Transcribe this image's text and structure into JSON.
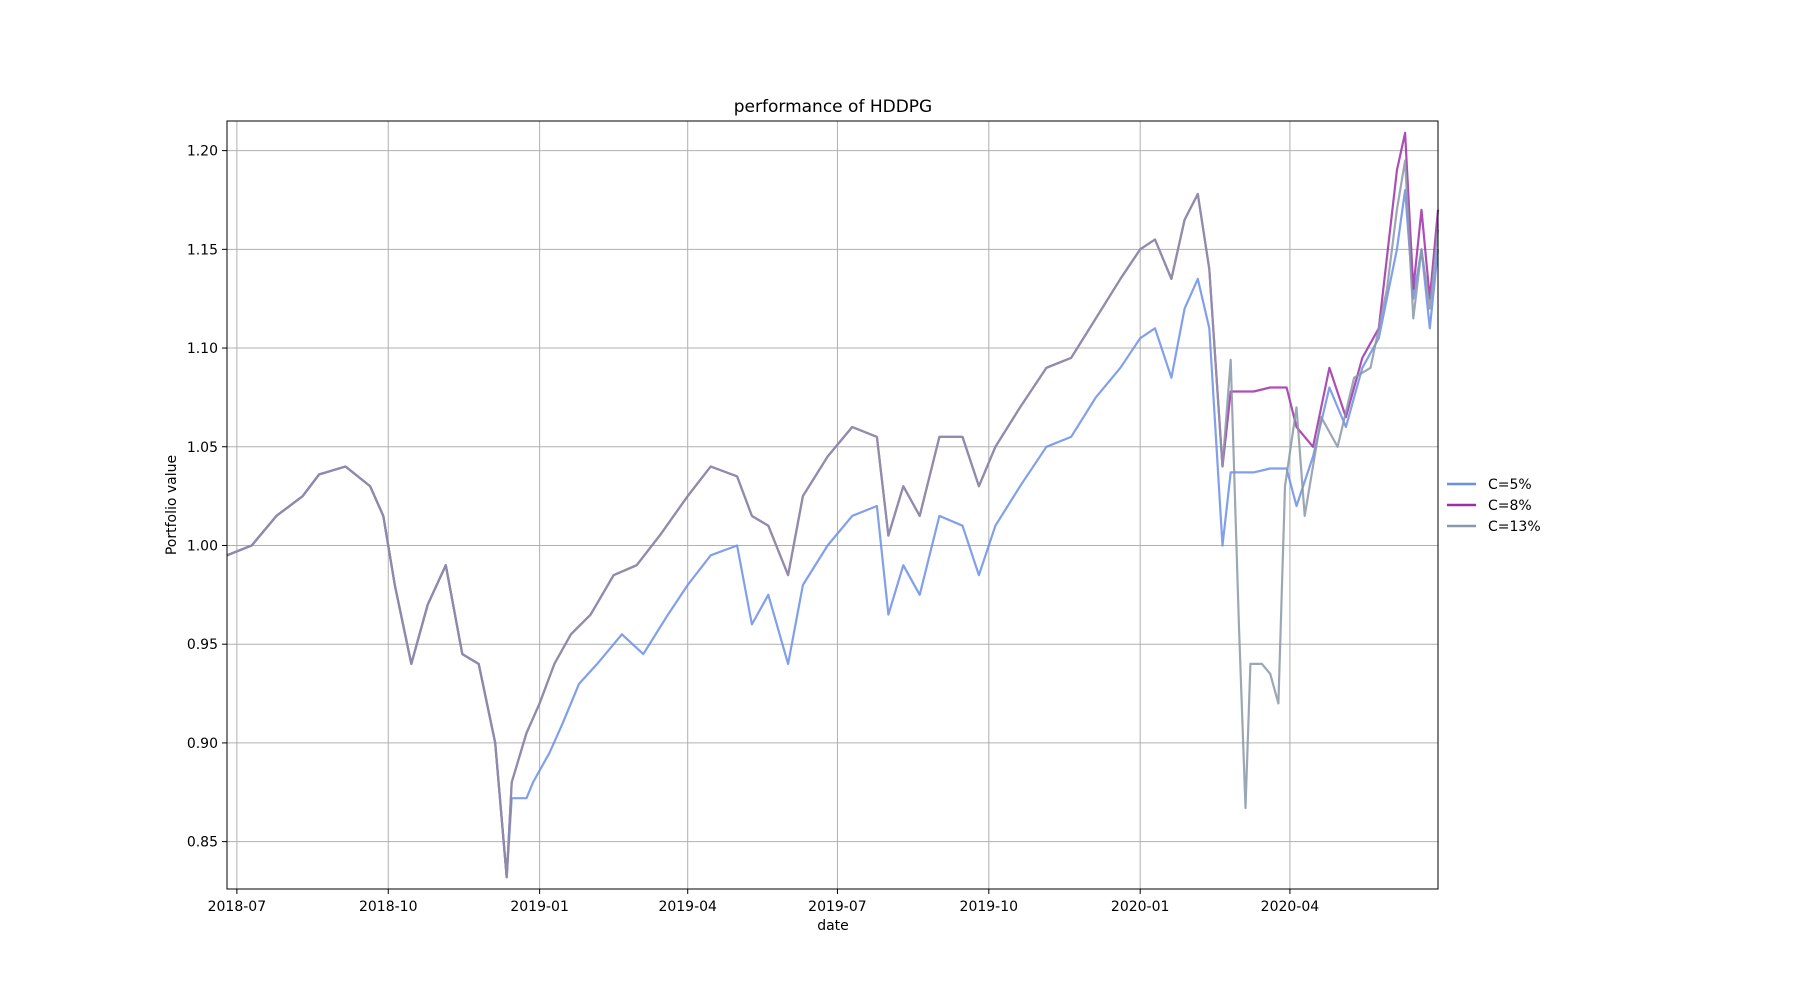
{
  "chart_data": {
    "type": "line",
    "title": "performance of HDDPG",
    "xlabel": "date",
    "ylabel": "Portfolio value",
    "x_ticks": [
      "2018-07",
      "2018-10",
      "2019-01",
      "2019-04",
      "2019-07",
      "2019-10",
      "2020-01",
      "2020-04"
    ],
    "y_ticks": [
      "0.85",
      "0.90",
      "0.95",
      "1.00",
      "1.05",
      "1.10",
      "1.15",
      "1.20"
    ],
    "xlim": [
      "2018-06-25",
      "2020-06-30"
    ],
    "ylim": [
      0.826,
      1.215
    ],
    "grid": true,
    "legend_position": "right, outside plot",
    "series": [
      {
        "name": "C=5%",
        "color": "#6b8ee8",
        "points": [
          [
            "2018-06-25",
            0.995
          ],
          [
            "2018-07-10",
            1.0
          ],
          [
            "2018-07-25",
            1.015
          ],
          [
            "2018-08-10",
            1.025
          ],
          [
            "2018-08-20",
            1.036
          ],
          [
            "2018-09-05",
            1.04
          ],
          [
            "2018-09-20",
            1.03
          ],
          [
            "2018-09-28",
            1.015
          ],
          [
            "2018-10-05",
            0.98
          ],
          [
            "2018-10-15",
            0.94
          ],
          [
            "2018-10-25",
            0.97
          ],
          [
            "2018-11-05",
            0.99
          ],
          [
            "2018-11-15",
            0.945
          ],
          [
            "2018-11-25",
            0.94
          ],
          [
            "2018-12-05",
            0.9
          ],
          [
            "2018-12-12",
            0.832
          ],
          [
            "2018-12-15",
            0.872
          ],
          [
            "2018-12-24",
            0.872
          ],
          [
            "2018-12-28",
            0.88
          ],
          [
            "2019-01-07",
            0.895
          ],
          [
            "2019-01-15",
            0.91
          ],
          [
            "2019-01-25",
            0.93
          ],
          [
            "2019-02-05",
            0.94
          ],
          [
            "2019-02-20",
            0.955
          ],
          [
            "2019-03-05",
            0.945
          ],
          [
            "2019-03-20",
            0.965
          ],
          [
            "2019-04-01",
            0.98
          ],
          [
            "2019-04-15",
            0.995
          ],
          [
            "2019-05-01",
            1.0
          ],
          [
            "2019-05-10",
            0.96
          ],
          [
            "2019-05-20",
            0.975
          ],
          [
            "2019-06-01",
            0.94
          ],
          [
            "2019-06-10",
            0.98
          ],
          [
            "2019-06-25",
            1.0
          ],
          [
            "2019-07-10",
            1.015
          ],
          [
            "2019-07-25",
            1.02
          ],
          [
            "2019-08-01",
            0.965
          ],
          [
            "2019-08-10",
            0.99
          ],
          [
            "2019-08-20",
            0.975
          ],
          [
            "2019-09-01",
            1.015
          ],
          [
            "2019-09-15",
            1.01
          ],
          [
            "2019-09-25",
            0.985
          ],
          [
            "2019-10-05",
            1.01
          ],
          [
            "2019-10-20",
            1.03
          ],
          [
            "2019-11-05",
            1.05
          ],
          [
            "2019-11-20",
            1.055
          ],
          [
            "2019-12-05",
            1.075
          ],
          [
            "2019-12-20",
            1.09
          ],
          [
            "2020-01-01",
            1.105
          ],
          [
            "2020-01-10",
            1.11
          ],
          [
            "2020-01-20",
            1.085
          ],
          [
            "2020-01-28",
            1.12
          ],
          [
            "2020-02-05",
            1.135
          ],
          [
            "2020-02-12",
            1.11
          ],
          [
            "2020-02-20",
            1.0
          ],
          [
            "2020-02-25",
            1.037
          ],
          [
            "2020-03-10",
            1.037
          ],
          [
            "2020-03-20",
            1.039
          ],
          [
            "2020-03-30",
            1.039
          ],
          [
            "2020-04-05",
            1.02
          ],
          [
            "2020-04-15",
            1.045
          ],
          [
            "2020-04-25",
            1.08
          ],
          [
            "2020-05-05",
            1.06
          ],
          [
            "2020-05-15",
            1.09
          ],
          [
            "2020-05-25",
            1.105
          ],
          [
            "2020-06-05",
            1.15
          ],
          [
            "2020-06-10",
            1.18
          ],
          [
            "2020-06-15",
            1.125
          ],
          [
            "2020-06-20",
            1.15
          ],
          [
            "2020-06-25",
            1.11
          ],
          [
            "2020-06-30",
            1.15
          ]
        ]
      },
      {
        "name": "C=8%",
        "color": "#9c2fa8",
        "points": [
          [
            "2018-06-25",
            0.995
          ],
          [
            "2018-07-10",
            1.0
          ],
          [
            "2018-07-25",
            1.015
          ],
          [
            "2018-08-10",
            1.025
          ],
          [
            "2018-08-20",
            1.036
          ],
          [
            "2018-09-05",
            1.04
          ],
          [
            "2018-09-20",
            1.03
          ],
          [
            "2018-09-28",
            1.015
          ],
          [
            "2018-10-05",
            0.98
          ],
          [
            "2018-10-15",
            0.94
          ],
          [
            "2018-10-25",
            0.97
          ],
          [
            "2018-11-05",
            0.99
          ],
          [
            "2018-11-15",
            0.945
          ],
          [
            "2018-11-25",
            0.94
          ],
          [
            "2018-12-05",
            0.9
          ],
          [
            "2018-12-12",
            0.832
          ],
          [
            "2018-12-15",
            0.88
          ],
          [
            "2018-12-24",
            0.905
          ],
          [
            "2019-01-01",
            0.92
          ],
          [
            "2019-01-10",
            0.94
          ],
          [
            "2019-01-20",
            0.955
          ],
          [
            "2019-02-01",
            0.965
          ],
          [
            "2019-02-15",
            0.985
          ],
          [
            "2019-03-01",
            0.99
          ],
          [
            "2019-03-15",
            1.005
          ],
          [
            "2019-04-01",
            1.025
          ],
          [
            "2019-04-15",
            1.04
          ],
          [
            "2019-05-01",
            1.035
          ],
          [
            "2019-05-10",
            1.015
          ],
          [
            "2019-05-20",
            1.01
          ],
          [
            "2019-06-01",
            0.985
          ],
          [
            "2019-06-10",
            1.025
          ],
          [
            "2019-06-25",
            1.045
          ],
          [
            "2019-07-10",
            1.06
          ],
          [
            "2019-07-25",
            1.055
          ],
          [
            "2019-08-01",
            1.005
          ],
          [
            "2019-08-10",
            1.03
          ],
          [
            "2019-08-20",
            1.015
          ],
          [
            "2019-09-01",
            1.055
          ],
          [
            "2019-09-15",
            1.055
          ],
          [
            "2019-09-25",
            1.03
          ],
          [
            "2019-10-05",
            1.05
          ],
          [
            "2019-10-20",
            1.07
          ],
          [
            "2019-11-05",
            1.09
          ],
          [
            "2019-11-20",
            1.095
          ],
          [
            "2019-12-05",
            1.115
          ],
          [
            "2019-12-20",
            1.135
          ],
          [
            "2020-01-01",
            1.15
          ],
          [
            "2020-01-10",
            1.155
          ],
          [
            "2020-01-20",
            1.135
          ],
          [
            "2020-01-28",
            1.165
          ],
          [
            "2020-02-05",
            1.178
          ],
          [
            "2020-02-12",
            1.14
          ],
          [
            "2020-02-20",
            1.04
          ],
          [
            "2020-02-25",
            1.078
          ],
          [
            "2020-03-10",
            1.078
          ],
          [
            "2020-03-20",
            1.08
          ],
          [
            "2020-03-30",
            1.08
          ],
          [
            "2020-04-05",
            1.06
          ],
          [
            "2020-04-15",
            1.05
          ],
          [
            "2020-04-25",
            1.09
          ],
          [
            "2020-05-05",
            1.065
          ],
          [
            "2020-05-15",
            1.095
          ],
          [
            "2020-05-25",
            1.11
          ],
          [
            "2020-06-05",
            1.19
          ],
          [
            "2020-06-10",
            1.209
          ],
          [
            "2020-06-15",
            1.13
          ],
          [
            "2020-06-20",
            1.17
          ],
          [
            "2020-06-25",
            1.125
          ],
          [
            "2020-06-30",
            1.17
          ]
        ]
      },
      {
        "name": "C=13%",
        "color": "#8b98a8",
        "points": [
          [
            "2018-06-25",
            0.995
          ],
          [
            "2018-07-10",
            1.0
          ],
          [
            "2018-07-25",
            1.015
          ],
          [
            "2018-08-10",
            1.025
          ],
          [
            "2018-08-20",
            1.036
          ],
          [
            "2018-09-05",
            1.04
          ],
          [
            "2018-09-20",
            1.03
          ],
          [
            "2018-09-28",
            1.015
          ],
          [
            "2018-10-05",
            0.98
          ],
          [
            "2018-10-15",
            0.94
          ],
          [
            "2018-10-25",
            0.97
          ],
          [
            "2018-11-05",
            0.99
          ],
          [
            "2018-11-15",
            0.945
          ],
          [
            "2018-11-25",
            0.94
          ],
          [
            "2018-12-05",
            0.9
          ],
          [
            "2018-12-12",
            0.832
          ],
          [
            "2018-12-15",
            0.88
          ],
          [
            "2018-12-24",
            0.905
          ],
          [
            "2019-01-01",
            0.92
          ],
          [
            "2019-01-10",
            0.94
          ],
          [
            "2019-01-20",
            0.955
          ],
          [
            "2019-02-01",
            0.965
          ],
          [
            "2019-02-15",
            0.985
          ],
          [
            "2019-03-01",
            0.99
          ],
          [
            "2019-03-15",
            1.005
          ],
          [
            "2019-04-01",
            1.025
          ],
          [
            "2019-04-15",
            1.04
          ],
          [
            "2019-05-01",
            1.035
          ],
          [
            "2019-05-10",
            1.015
          ],
          [
            "2019-05-20",
            1.01
          ],
          [
            "2019-06-01",
            0.985
          ],
          [
            "2019-06-10",
            1.025
          ],
          [
            "2019-06-25",
            1.045
          ],
          [
            "2019-07-10",
            1.06
          ],
          [
            "2019-07-25",
            1.055
          ],
          [
            "2019-08-01",
            1.005
          ],
          [
            "2019-08-10",
            1.03
          ],
          [
            "2019-08-20",
            1.015
          ],
          [
            "2019-09-01",
            1.055
          ],
          [
            "2019-09-15",
            1.055
          ],
          [
            "2019-09-25",
            1.03
          ],
          [
            "2019-10-05",
            1.05
          ],
          [
            "2019-10-20",
            1.07
          ],
          [
            "2019-11-05",
            1.09
          ],
          [
            "2019-11-20",
            1.095
          ],
          [
            "2019-12-05",
            1.115
          ],
          [
            "2019-12-20",
            1.135
          ],
          [
            "2020-01-01",
            1.15
          ],
          [
            "2020-01-10",
            1.155
          ],
          [
            "2020-01-20",
            1.135
          ],
          [
            "2020-01-28",
            1.165
          ],
          [
            "2020-02-05",
            1.178
          ],
          [
            "2020-02-12",
            1.14
          ],
          [
            "2020-02-20",
            1.04
          ],
          [
            "2020-02-25",
            1.094
          ],
          [
            "2020-03-01",
            0.96
          ],
          [
            "2020-03-05",
            0.867
          ],
          [
            "2020-03-08",
            0.94
          ],
          [
            "2020-03-15",
            0.94
          ],
          [
            "2020-03-20",
            0.935
          ],
          [
            "2020-03-25",
            0.92
          ],
          [
            "2020-03-29",
            1.03
          ],
          [
            "2020-04-05",
            1.07
          ],
          [
            "2020-04-10",
            1.015
          ],
          [
            "2020-04-20",
            1.065
          ],
          [
            "2020-04-30",
            1.05
          ],
          [
            "2020-05-10",
            1.085
          ],
          [
            "2020-05-20",
            1.09
          ],
          [
            "2020-05-30",
            1.13
          ],
          [
            "2020-06-05",
            1.17
          ],
          [
            "2020-06-10",
            1.195
          ],
          [
            "2020-06-15",
            1.115
          ],
          [
            "2020-06-20",
            1.15
          ],
          [
            "2020-06-25",
            1.12
          ],
          [
            "2020-06-30",
            1.16
          ]
        ]
      }
    ]
  }
}
